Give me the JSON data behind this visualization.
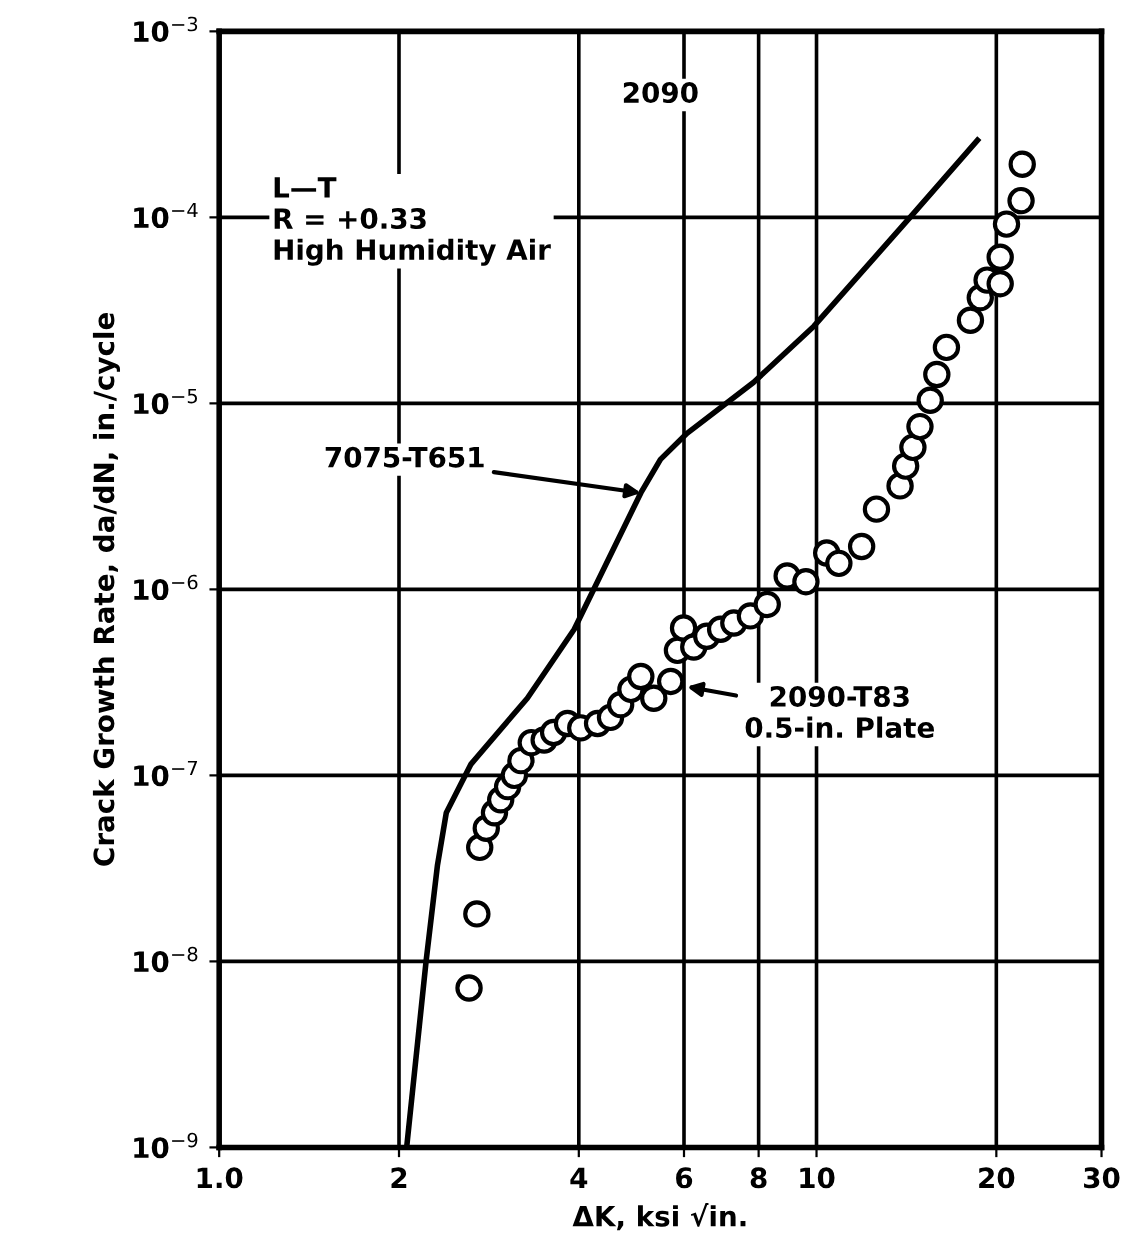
{
  "chart_data": {
    "type": "scatter",
    "xlabel": "ΔK, ksi √in.",
    "ylabel": "Crack Growth Rate, da/dN, in./cycle",
    "log": "xy",
    "grid": true,
    "xlim": [
      1,
      30
    ],
    "ylim": [
      1e-09,
      0.001
    ],
    "xticks": [
      {
        "value": 1,
        "label": "1.0"
      },
      2,
      4,
      6,
      8,
      10,
      20,
      30
    ],
    "yticks": [
      {
        "value": 1e-09,
        "label": "10$^{−9}$"
      },
      {
        "value": 1e-08,
        "label": "10$^{−8}$"
      },
      {
        "value": 1e-07,
        "label": "10$^{−7}$"
      },
      {
        "value": 1e-06,
        "label": "10$^{−6}$"
      },
      {
        "value": 1e-05,
        "label": "10$^{−5}$"
      },
      {
        "value": 0.0001,
        "label": "10$^{−4}$"
      },
      {
        "value": 0.001,
        "label": "10$^{−3}$"
      }
    ],
    "series": [
      {
        "type": "line",
        "color": "#000000",
        "marker": "none",
        "line_style": "solid",
        "x": [
          2.06,
          2.22,
          2.32,
          2.4,
          2.64,
          3.28,
          3.93,
          5.08,
          5.48,
          6.07,
          7.85,
          9.9,
          14.5,
          18.6
        ],
        "values": [
          1e-09,
          1e-08,
          3.3e-08,
          6.3e-08,
          1.15e-07,
          2.6e-07,
          6.1e-07,
          3.3e-06,
          5e-06,
          6.9e-06,
          1.3e-05,
          2.6e-05,
          0.000104,
          0.00026
        ]
      },
      {
        "type": "scatter",
        "color": "#000000",
        "marker": "circle",
        "x": [
          2.62,
          2.7,
          2.73,
          2.8,
          2.89,
          2.96,
          3.04,
          3.12,
          3.2,
          3.33,
          3.5,
          3.63,
          3.83,
          4.03,
          4.3,
          4.52,
          4.7,
          4.89,
          5.08,
          5.34,
          5.7,
          5.85,
          5.99,
          6.23,
          6.55,
          6.91,
          7.27,
          7.75,
          8.27,
          8.93,
          9.6,
          10.4,
          10.9,
          11.9,
          12.6,
          13.8,
          14.1,
          14.5,
          14.9,
          15.5,
          15.9,
          16.5,
          18.1,
          18.8,
          19.3,
          20.3,
          20.3,
          20.8,
          22.0,
          22.1
        ],
        "values": [
          7.2e-09,
          1.8e-08,
          4.1e-08,
          5.2e-08,
          6.3e-08,
          7.4e-08,
          8.7e-08,
          1e-07,
          1.2e-07,
          1.5e-07,
          1.55e-07,
          1.7e-07,
          1.9e-07,
          1.8e-07,
          1.9e-07,
          2.05e-07,
          2.4e-07,
          2.9e-07,
          3.4e-07,
          2.6e-07,
          3.2e-07,
          4.7e-07,
          6.2e-07,
          4.9e-07,
          5.6e-07,
          6.1e-07,
          6.6e-07,
          7.2e-07,
          8.3e-07,
          1.18e-06,
          1.1e-06,
          1.57e-06,
          1.38e-06,
          1.7e-06,
          2.7e-06,
          3.6e-06,
          4.6e-06,
          5.8e-06,
          7.5e-06,
          1.04e-05,
          1.43e-05,
          2e-05,
          2.8e-05,
          3.7e-05,
          4.6e-05,
          6.1e-05,
          4.4e-05,
          9.2e-05,
          0.000123,
          0.000193
        ]
      }
    ],
    "annotations": [
      "2090",
      "L—T\nR = +0.33\nHigh Humidity Air",
      {
        "text": "7075-T651",
        "x": 5.08,
        "y": 3.3e-06
      },
      {
        "text": "2090-T83\n0.5-in. Plate",
        "x": 6.07,
        "y": 3e-07
      }
    ]
  }
}
